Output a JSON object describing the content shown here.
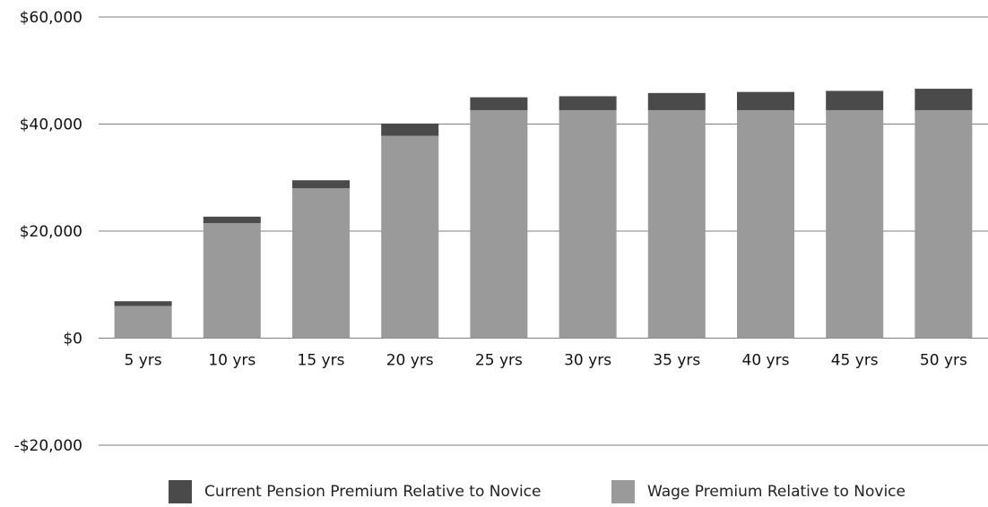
{
  "chart_data": {
    "type": "bar",
    "stacked": true,
    "categories": [
      "5 yrs",
      "10 yrs",
      "15 yrs",
      "20 yrs",
      "25 yrs",
      "30 yrs",
      "35 yrs",
      "40 yrs",
      "45 yrs",
      "50 yrs"
    ],
    "series": [
      {
        "name": "Wage Premium Relative to Novice",
        "color": "#9a9a9a",
        "values": [
          6000,
          21500,
          28000,
          37800,
          42600,
          42600,
          42600,
          42600,
          42600,
          42600
        ]
      },
      {
        "name": "Current Pension Premium Relative to Novice",
        "color": "#4a4a4a",
        "values": [
          900,
          1200,
          1500,
          2300,
          2400,
          2600,
          3200,
          3400,
          3600,
          4000
        ]
      }
    ],
    "y_tick_labels": [
      "$60,000",
      "$40,000",
      "$20,000",
      "$0",
      "-$20,000"
    ],
    "y_ticks": [
      60000,
      40000,
      20000,
      0,
      -20000
    ],
    "ylim": [
      -20000,
      60000
    ],
    "grid": true,
    "legend_position": "bottom",
    "legend": [
      {
        "label": "Current Pension Premium Relative to Novice",
        "color": "#4a4a4a"
      },
      {
        "label": "Wage Premium Relative to Novice",
        "color": "#9a9a9a"
      }
    ]
  }
}
